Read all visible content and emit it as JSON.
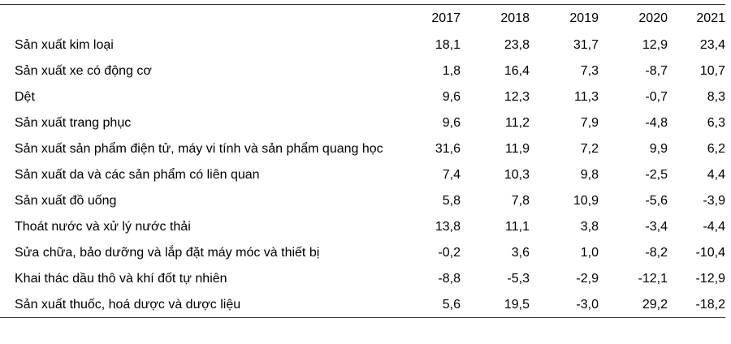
{
  "table": {
    "header": [
      "2017",
      "2018",
      "2019",
      "2020",
      "2021"
    ],
    "rows": [
      [
        "Sản xuất kim loại",
        "18,1",
        "23,8",
        "31,7",
        "12,9",
        "23,4"
      ],
      [
        "Sản xuất xe có động cơ",
        "1,8",
        "16,4",
        "7,3",
        "-8,7",
        "10,7"
      ],
      [
        "Dệt",
        "9,6",
        "12,3",
        "11,3",
        "-0,7",
        "8,3"
      ],
      [
        "Sản xuất trang phục",
        "9,6",
        "11,2",
        "7,9",
        "-4,8",
        "6,3"
      ],
      [
        "Sản xuất sản phẩm điện tử, máy vi tính và sản phẩm quang học",
        "31,6",
        "11,9",
        "7,2",
        "9,9",
        "6,2"
      ],
      [
        "Sản xuất da và các sản phẩm có liên quan",
        "7,4",
        "10,3",
        "9,8",
        "-2,5",
        "4,4"
      ],
      [
        "Sản xuất đồ uống",
        "5,8",
        "7,8",
        "10,9",
        "-5,6",
        "-3,9"
      ],
      [
        "Thoát nước và xử lý nước thải",
        "13,8",
        "11,1",
        "3,8",
        "-3,4",
        "-4,4"
      ],
      [
        "Sửa chữa, bảo dưỡng và lắp đặt máy móc và thiết bị",
        "-0,2",
        "3,6",
        "1,0",
        "-8,2",
        "-10,4"
      ],
      [
        "Khai thác dầu thô và khí đốt tự nhiên",
        "-8,8",
        "-5,3",
        "-2,9",
        "-12,1",
        "-12,9"
      ],
      [
        "Sản xuất thuốc, hoá dược và dược liệu",
        "5,6",
        "19,5",
        "-3,0",
        "29,2",
        "-18,2"
      ]
    ]
  }
}
